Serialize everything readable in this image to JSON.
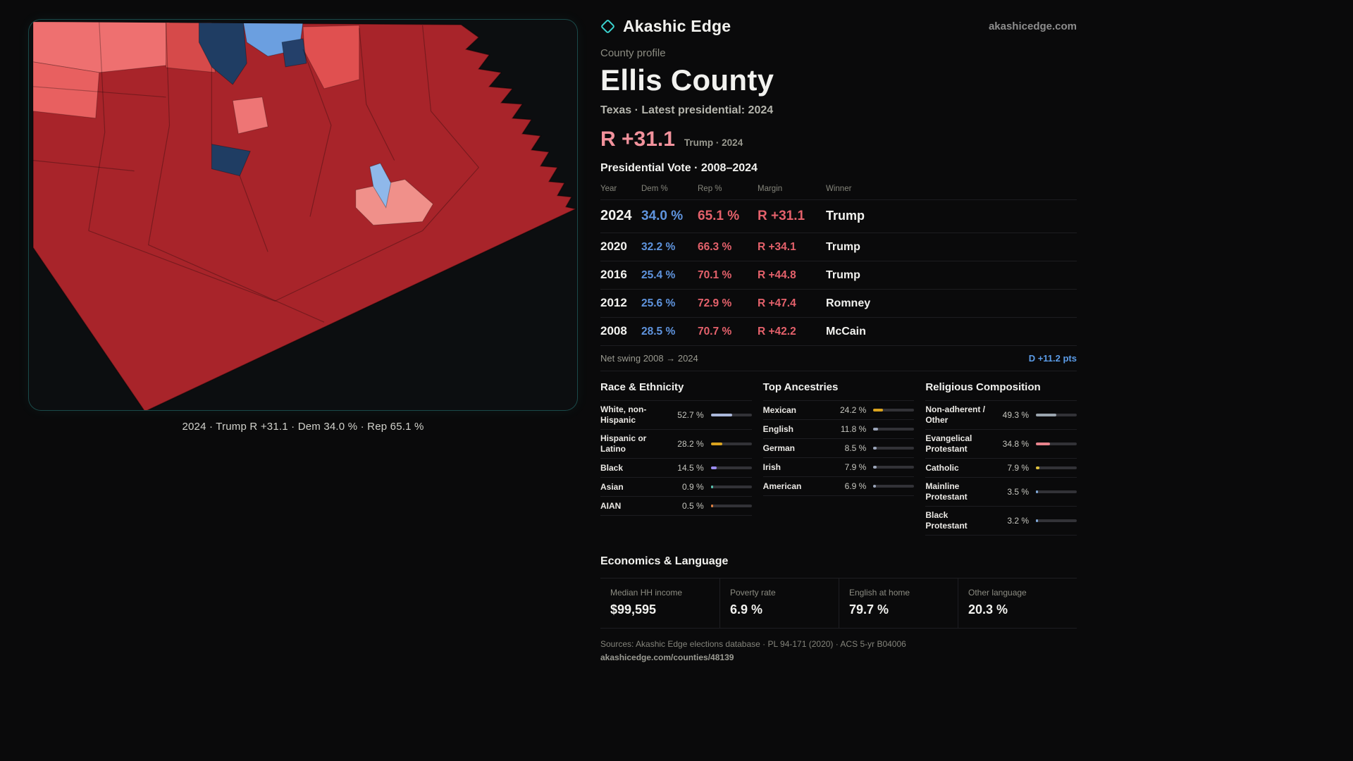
{
  "brand": {
    "name": "Akashic Edge",
    "domain": "akashicedge.com"
  },
  "map": {
    "caption": "2024 · Trump R +31.1 · Dem 34.0 % · Rep 65.1 %"
  },
  "profile": {
    "kicker": "County profile",
    "title": "Ellis County",
    "subtitle": "Texas · Latest presidential: 2024",
    "headline_margin": "R +31.1",
    "headline_note": "Trump · 2024"
  },
  "vote_table": {
    "title": "Presidential Vote · 2008–2024",
    "columns": [
      "Year",
      "Dem %",
      "Rep %",
      "Margin",
      "Winner"
    ],
    "rows": [
      {
        "year": "2024",
        "dem": "34.0 %",
        "rep": "65.1 %",
        "margin": "R +31.1",
        "winner": "Trump"
      },
      {
        "year": "2020",
        "dem": "32.2 %",
        "rep": "66.3 %",
        "margin": "R +34.1",
        "winner": "Trump"
      },
      {
        "year": "2016",
        "dem": "25.4 %",
        "rep": "70.1 %",
        "margin": "R +44.8",
        "winner": "Trump"
      },
      {
        "year": "2012",
        "dem": "25.6 %",
        "rep": "72.9 %",
        "margin": "R +47.4",
        "winner": "Romney"
      },
      {
        "year": "2008",
        "dem": "28.5 %",
        "rep": "70.7 %",
        "margin": "R +42.2",
        "winner": "McCain"
      }
    ]
  },
  "swing": {
    "label": "Net swing 2008 → 2024",
    "value": "D +11.2 pts"
  },
  "demographics": [
    {
      "title": "Race & Ethnicity",
      "rows": [
        {
          "label": "White, non-Hispanic",
          "value": "52.7 %",
          "pct": 52.7,
          "color": "#aab7da"
        },
        {
          "label": "Hispanic or Latino",
          "value": "28.2 %",
          "pct": 28.2,
          "color": "#d9a31f"
        },
        {
          "label": "Black",
          "value": "14.5 %",
          "pct": 14.5,
          "color": "#9b8cf0"
        },
        {
          "label": "Asian",
          "value": "0.9 %",
          "pct": 0.9,
          "color": "#58c2b0"
        },
        {
          "label": "AIAN",
          "value": "0.5 %",
          "pct": 0.5,
          "color": "#e08040"
        }
      ]
    },
    {
      "title": "Top Ancestries",
      "rows": [
        {
          "label": "Mexican",
          "value": "24.2 %",
          "pct": 24.2,
          "color": "#d9a31f"
        },
        {
          "label": "English",
          "value": "11.8 %",
          "pct": 11.8,
          "color": "#9aa4b8"
        },
        {
          "label": "German",
          "value": "8.5 %",
          "pct": 8.5,
          "color": "#9aa4b8"
        },
        {
          "label": "Irish",
          "value": "7.9 %",
          "pct": 7.9,
          "color": "#9aa4b8"
        },
        {
          "label": "American",
          "value": "6.9 %",
          "pct": 6.9,
          "color": "#9aa4b8"
        }
      ]
    },
    {
      "title": "Religious Composition",
      "rows": [
        {
          "label": "Non-adherent / Other",
          "value": "49.3 %",
          "pct": 49.3,
          "color": "#9aa4ae"
        },
        {
          "label": "Evangelical Protestant",
          "value": "34.8 %",
          "pct": 34.8,
          "color": "#e8838c"
        },
        {
          "label": "Catholic",
          "value": "7.9 %",
          "pct": 7.9,
          "color": "#e0c23e"
        },
        {
          "label": "Mainline Protestant",
          "value": "3.5 %",
          "pct": 3.5,
          "color": "#7fa8d8"
        },
        {
          "label": "Black Protestant",
          "value": "3.2 %",
          "pct": 3.2,
          "color": "#7fa8d8"
        }
      ]
    }
  ],
  "economics": {
    "title": "Economics & Language",
    "stats": [
      {
        "label": "Median HH income",
        "value": "$99,595"
      },
      {
        "label": "Poverty rate",
        "value": "6.9 %"
      },
      {
        "label": "English at home",
        "value": "79.7 %"
      },
      {
        "label": "Other language",
        "value": "20.3 %"
      }
    ]
  },
  "footer": {
    "sources": "Sources: Akashic Edge elections database · PL 94-171 (2020) · ACS 5-yr B04006",
    "permalink": "akashicedge.com/counties/48139"
  },
  "colors": {
    "background": "#0a0a0b",
    "accent_teal": "#3bd4d0",
    "dem_blue": "#5f94de",
    "rep_red": "#e4616b",
    "headline_salmon": "#f2929c",
    "swing_blue": "#5b9ce8",
    "map_dark_red": "#a8242a",
    "map_salmon": "#ee7070",
    "map_navy": "#1f3d63",
    "map_light_blue": "#6b9fe0"
  }
}
